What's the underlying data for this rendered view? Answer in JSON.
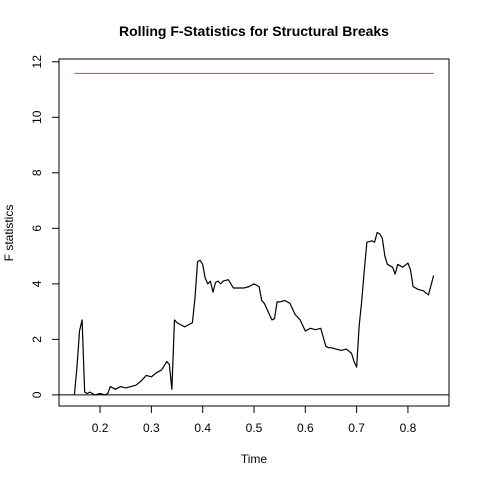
{
  "chart_data": {
    "type": "line",
    "title": "Rolling F-Statistics for Structural Breaks",
    "xlabel": "Time",
    "ylabel": "F statistics",
    "xlim": [
      0.12,
      0.88
    ],
    "ylim": [
      -0.4,
      12.1
    ],
    "x_ticks": [
      0.2,
      0.3,
      0.4,
      0.5,
      0.6,
      0.7,
      0.8
    ],
    "x_tick_labels": [
      "0.2",
      "0.3",
      "0.4",
      "0.5",
      "0.6",
      "0.7",
      "0.8"
    ],
    "y_ticks": [
      0,
      2,
      4,
      6,
      8,
      10,
      12
    ],
    "y_tick_labels": [
      "0",
      "2",
      "4",
      "6",
      "8",
      "10",
      "12"
    ],
    "grid": false,
    "series": [
      {
        "color": "#000000",
        "x": [
          0.15,
          0.155,
          0.16,
          0.165,
          0.17,
          0.175,
          0.18,
          0.19,
          0.2,
          0.21,
          0.215,
          0.22,
          0.23,
          0.24,
          0.25,
          0.26,
          0.27,
          0.28,
          0.29,
          0.3,
          0.31,
          0.32,
          0.33,
          0.335,
          0.34,
          0.345,
          0.35,
          0.36,
          0.365,
          0.37,
          0.38,
          0.385,
          0.39,
          0.395,
          0.4,
          0.405,
          0.41,
          0.415,
          0.42,
          0.425,
          0.43,
          0.435,
          0.44,
          0.45,
          0.46,
          0.47,
          0.48,
          0.49,
          0.5,
          0.51,
          0.515,
          0.52,
          0.53,
          0.535,
          0.54,
          0.545,
          0.55,
          0.56,
          0.57,
          0.58,
          0.59,
          0.6,
          0.61,
          0.62,
          0.63,
          0.64,
          0.645,
          0.65,
          0.66,
          0.67,
          0.68,
          0.69,
          0.695,
          0.7,
          0.705,
          0.71,
          0.715,
          0.72,
          0.73,
          0.735,
          0.74,
          0.745,
          0.75,
          0.755,
          0.76,
          0.77,
          0.775,
          0.78,
          0.79,
          0.8,
          0.805,
          0.81,
          0.82,
          0.83,
          0.84,
          0.85
        ],
        "values": [
          0.0,
          1.0,
          2.3,
          2.7,
          0.1,
          0.05,
          0.1,
          0.0,
          0.05,
          0.0,
          0.05,
          0.3,
          0.2,
          0.3,
          0.25,
          0.3,
          0.35,
          0.5,
          0.7,
          0.65,
          0.8,
          0.9,
          1.2,
          1.1,
          0.2,
          2.7,
          2.6,
          2.5,
          2.45,
          2.5,
          2.6,
          3.5,
          4.8,
          4.85,
          4.7,
          4.2,
          4.0,
          4.1,
          3.7,
          4.05,
          4.1,
          4.0,
          4.1,
          4.15,
          3.85,
          3.85,
          3.85,
          3.9,
          4.0,
          3.9,
          3.4,
          3.3,
          2.9,
          2.7,
          2.75,
          3.35,
          3.35,
          3.4,
          3.3,
          2.9,
          2.7,
          2.3,
          2.4,
          2.35,
          2.4,
          1.75,
          1.7,
          1.7,
          1.65,
          1.6,
          1.65,
          1.5,
          1.2,
          1.0,
          2.5,
          3.4,
          4.5,
          5.5,
          5.55,
          5.5,
          5.85,
          5.8,
          5.65,
          5.0,
          4.7,
          4.6,
          4.35,
          4.7,
          4.6,
          4.75,
          4.5,
          3.9,
          3.8,
          3.75,
          3.6,
          4.3
        ]
      },
      {
        "color": "#d6586e",
        "x": [
          0.15,
          0.85
        ],
        "values": [
          11.58,
          11.58
        ]
      }
    ],
    "reference_lines": [
      {
        "orientation": "horizontal",
        "y": 0,
        "color": "#000000"
      }
    ]
  }
}
